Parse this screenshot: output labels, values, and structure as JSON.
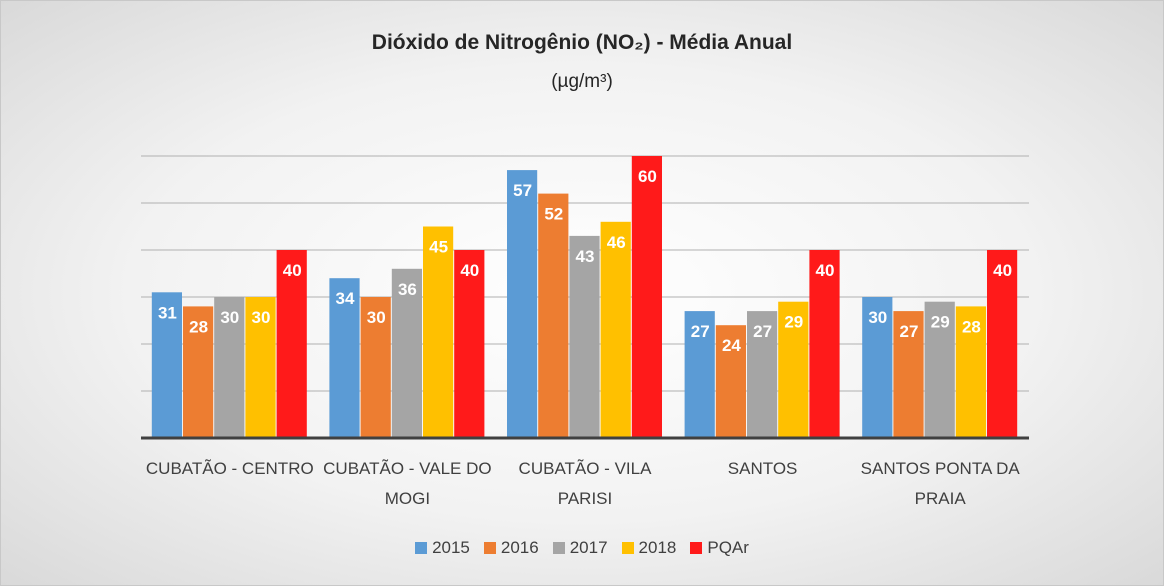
{
  "chart_data": {
    "type": "bar",
    "title": "Dióxido de Nitrogênio (NO₂) - Média Anual",
    "subtitle": "(µg/m³)",
    "categories": [
      "CUBATÃO - CENTRO",
      "CUBATÃO - VALE DO MOGI",
      "CUBATÃO - VILA PARISI",
      "SANTOS",
      "SANTOS PONTA DA PRAIA"
    ],
    "series": [
      {
        "name": "2015",
        "color": "#5b9bd5",
        "values": [
          31,
          34,
          57,
          27,
          30
        ]
      },
      {
        "name": "2016",
        "color": "#ed7d31",
        "values": [
          28,
          30,
          52,
          24,
          27
        ]
      },
      {
        "name": "2017",
        "color": "#a5a5a5",
        "values": [
          30,
          36,
          43,
          27,
          29
        ]
      },
      {
        "name": "2018",
        "color": "#ffc000",
        "values": [
          30,
          45,
          46,
          29,
          28
        ]
      },
      {
        "name": "PQAr",
        "color": "#ff1a1a",
        "values": [
          40,
          40,
          60,
          40,
          40
        ]
      }
    ],
    "ylim": [
      0,
      60
    ],
    "yticks": [
      0,
      10,
      20,
      30,
      40,
      50,
      60
    ],
    "grid": true,
    "legend": "bottom"
  }
}
